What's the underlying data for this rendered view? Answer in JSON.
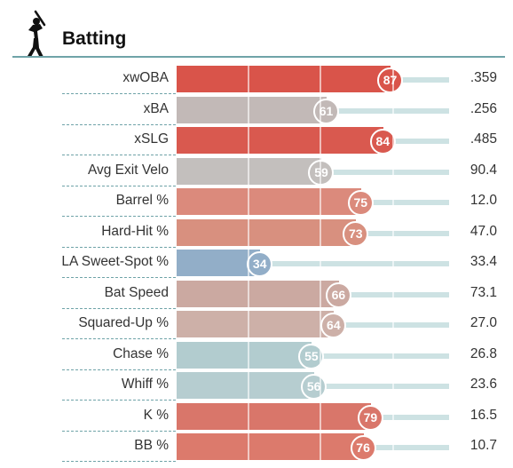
{
  "section": {
    "title": "Batting",
    "icon": "batter-silhouette-icon"
  },
  "colors": {
    "accent_rule": "#6fa3a8",
    "track": "#cde2e3"
  },
  "metrics": [
    {
      "label": "xwOBA",
      "percentile": 87,
      "value": ".359",
      "color": "#d9544a"
    },
    {
      "label": "xBA",
      "percentile": 61,
      "value": ".256",
      "color": "#c2b9b7"
    },
    {
      "label": "xSLG",
      "percentile": 84,
      "value": ".485",
      "color": "#d9594f"
    },
    {
      "label": "Avg Exit Velo",
      "percentile": 59,
      "value": "90.4",
      "color": "#c3bfbd"
    },
    {
      "label": "Barrel %",
      "percentile": 75,
      "value": "12.0",
      "color": "#db8a7c"
    },
    {
      "label": "Hard-Hit %",
      "percentile": 73,
      "value": "47.0",
      "color": "#d8907f"
    },
    {
      "label": "LA Sweet-Spot %",
      "percentile": 34,
      "value": "33.4",
      "color": "#92aec8"
    },
    {
      "label": "Bat Speed",
      "percentile": 66,
      "value": "73.1",
      "color": "#cba9a1"
    },
    {
      "label": "Squared-Up %",
      "percentile": 64,
      "value": "27.0",
      "color": "#cdb0a8"
    },
    {
      "label": "Chase %",
      "percentile": 55,
      "value": "26.8",
      "color": "#b2cccf"
    },
    {
      "label": "Whiff %",
      "percentile": 56,
      "value": "23.6",
      "color": "#b6cdd0"
    },
    {
      "label": "K %",
      "percentile": 79,
      "value": "16.5",
      "color": "#d9766a"
    },
    {
      "label": "BB %",
      "percentile": 76,
      "value": "10.7",
      "color": "#dc7a6c"
    }
  ]
}
